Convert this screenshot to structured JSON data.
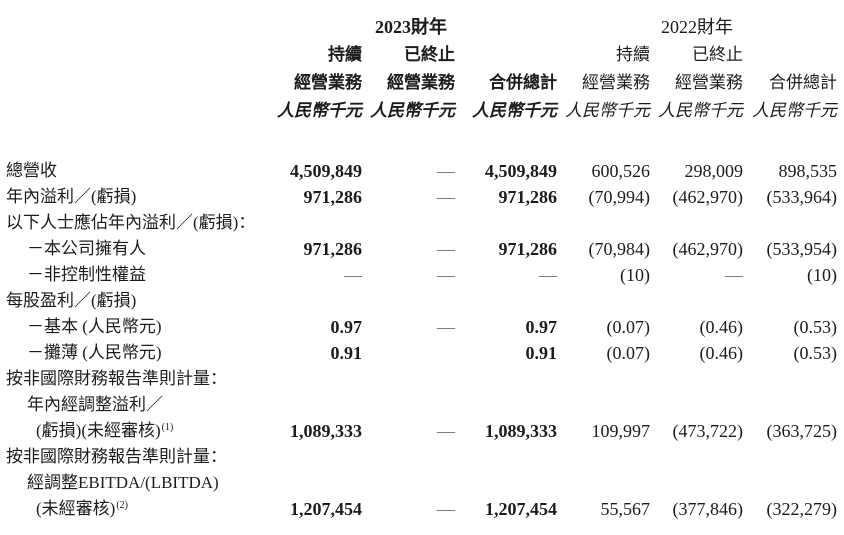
{
  "colors": {
    "paper": "#ffffff",
    "ink": "#1c1c1c",
    "dash": "#6a6a6a",
    "bold_value_ink": "#000000"
  },
  "header": {
    "groups": [
      {
        "title": "2023財年",
        "bold": true
      },
      {
        "title": "2022財年",
        "bold": false
      }
    ],
    "columns": [
      {
        "group": 0,
        "l1": "持續",
        "l2": "經營業務",
        "unit": "人民幣千元"
      },
      {
        "group": 0,
        "l1": "已終止",
        "l2": "經營業務",
        "unit": "人民幣千元"
      },
      {
        "group": 0,
        "l1": "",
        "l2": "合併總計",
        "unit": "人民幣千元"
      },
      {
        "group": 1,
        "l1": "持續",
        "l2": "經營業務",
        "unit": "人民幣千元"
      },
      {
        "group": 1,
        "l1": "已終止",
        "l2": "經營業務",
        "unit": "人民幣千元"
      },
      {
        "group": 1,
        "l1": "",
        "l2": "合併總計",
        "unit": "人民幣千元"
      }
    ]
  },
  "rows": [
    {
      "label": "總營收",
      "sup": "",
      "indent": 0,
      "values": [
        "4,509,849",
        "—",
        "4,509,849",
        "600,526",
        "298,009",
        "898,535"
      ]
    },
    {
      "label": "年內溢利／(虧損)",
      "sup": "",
      "indent": 0,
      "values": [
        "971,286",
        "—",
        "971,286",
        "(70,994)",
        "(462,970)",
        "(533,964)"
      ]
    },
    {
      "label": "以下人士應佔年內溢利／(虧損)：",
      "sup": "",
      "indent": 0,
      "values": [
        "",
        "",
        "",
        "",
        "",
        ""
      ]
    },
    {
      "label": "－本公司擁有人",
      "sup": "",
      "indent": 1,
      "values": [
        "971,286",
        "—",
        "971,286",
        "(70,984)",
        "(462,970)",
        "(533,954)"
      ]
    },
    {
      "label": "－非控制性權益",
      "sup": "",
      "indent": 1,
      "values": [
        "—",
        "—",
        "—",
        "(10)",
        "—",
        "(10)"
      ]
    },
    {
      "label": "每股盈利／(虧損)",
      "sup": "",
      "indent": 0,
      "values": [
        "",
        "",
        "",
        "",
        "",
        ""
      ]
    },
    {
      "label": "－基本 (人民幣元)",
      "sup": "",
      "indent": 1,
      "values": [
        "0.97",
        "—",
        "0.97",
        "(0.07)",
        "(0.46)",
        "(0.53)"
      ]
    },
    {
      "label": "－攤薄 (人民幣元)",
      "sup": "",
      "indent": 1,
      "values": [
        "0.91",
        "",
        "0.91",
        "(0.07)",
        "(0.46)",
        "(0.53)"
      ]
    },
    {
      "label": "按非國際財務報告準則計量：",
      "sup": "",
      "indent": 0,
      "values": [
        "",
        "",
        "",
        "",
        "",
        ""
      ]
    },
    {
      "label": "年內經調整溢利／",
      "sup": "",
      "indent": 1,
      "values": [
        "",
        "",
        "",
        "",
        "",
        ""
      ]
    },
    {
      "label": "(虧損)(未經審核)",
      "sup": "(1)",
      "indent": 2,
      "values": [
        "1,089,333",
        "—",
        "1,089,333",
        "109,997",
        "(473,722)",
        "(363,725)"
      ]
    },
    {
      "label": "按非國際財務報告準則計量：",
      "sup": "",
      "indent": 0,
      "values": [
        "",
        "",
        "",
        "",
        "",
        ""
      ]
    },
    {
      "label": "經調整EBITDA/(LBITDA)",
      "sup": "",
      "indent": 1,
      "values": [
        "",
        "",
        "",
        "",
        "",
        ""
      ]
    },
    {
      "label": "(未經審核)",
      "sup": "(2)",
      "indent": 2,
      "values": [
        "1,207,454",
        "—",
        "1,207,454",
        "55,567",
        "(377,846)",
        "(322,279)"
      ]
    }
  ]
}
